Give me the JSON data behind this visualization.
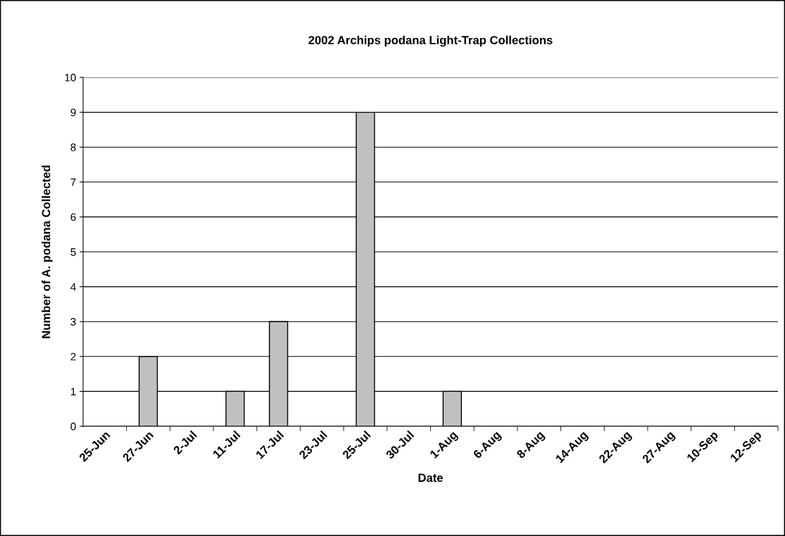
{
  "chart_data": {
    "type": "bar",
    "title": "2002 Archips podana Light-Trap Collections",
    "xlabel": "Date",
    "ylabel": "Number of A. podana Collected",
    "categories": [
      "25-Jun",
      "27-Jun",
      "2-Jul",
      "11-Jul",
      "17-Jul",
      "23-Jul",
      "25-Jul",
      "30-Jul",
      "1-Aug",
      "6-Aug",
      "8-Aug",
      "14-Aug",
      "22-Aug",
      "27-Aug",
      "10-Sep",
      "12-Sep"
    ],
    "values": [
      0,
      2,
      0,
      1,
      3,
      0,
      9,
      0,
      1,
      0,
      0,
      0,
      0,
      0,
      0,
      0
    ],
    "color": "#c0c0c0",
    "ylim": [
      0,
      10
    ],
    "yticks": [
      0,
      1,
      2,
      3,
      4,
      5,
      6,
      7,
      8,
      9,
      10
    ],
    "grid": "y"
  }
}
